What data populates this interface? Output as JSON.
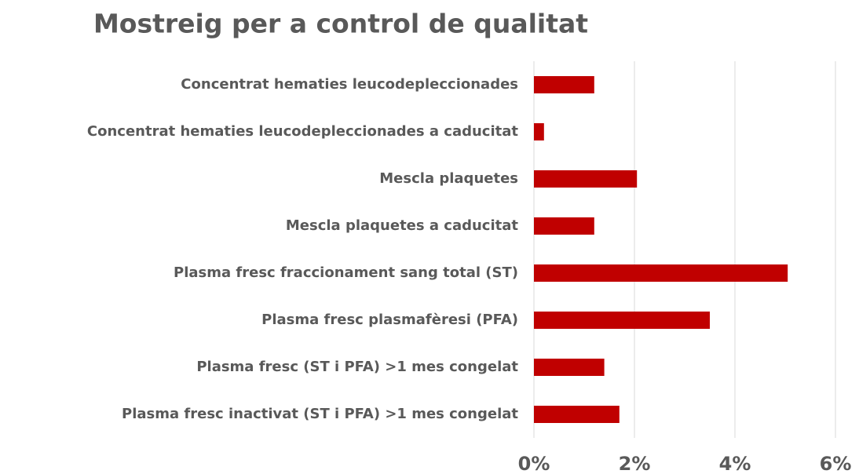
{
  "chart_data": {
    "type": "barh",
    "title": "Mostreig per a control de qualitat",
    "categories": [
      "Concentrat hematies leucodepleccionades",
      "Concentrat hematies leucodepleccionades a caducitat",
      "Mescla plaquetes",
      "Mescla plaquetes a caducitat",
      "Plasma fresc fraccionament sang total (ST)",
      "Plasma fresc plasmafèresi (PFA)",
      "Plasma fresc (ST i PFA) >1 mes congelat",
      "Plasma fresc inactivat (ST i PFA) >1 mes congelat"
    ],
    "values": [
      1.2,
      0.2,
      2.05,
      1.2,
      5.05,
      3.5,
      1.4,
      1.7
    ],
    "color": "#c00000",
    "xlim": [
      0,
      6
    ],
    "xticks": [
      {
        "value": 0,
        "label": "0%"
      },
      {
        "value": 2,
        "label": "2%"
      },
      {
        "value": 4,
        "label": "4%"
      },
      {
        "value": 6,
        "label": "6%"
      }
    ],
    "grid": true
  }
}
